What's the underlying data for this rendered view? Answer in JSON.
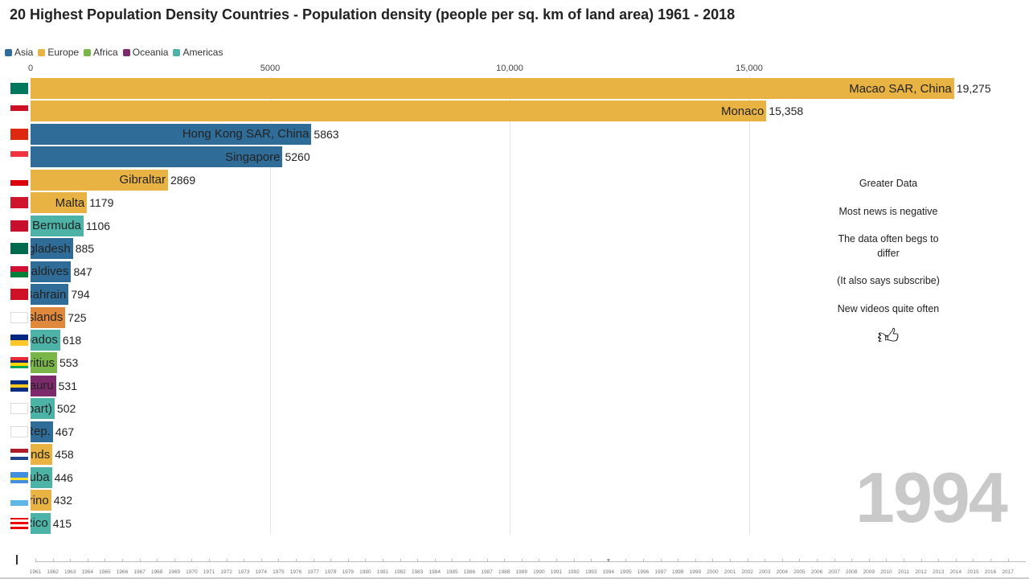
{
  "title": "20 Highest Population Density Countries - Population density (people per sq. km of land area) 1961 - 2018",
  "legend": [
    {
      "label": "Asia",
      "color": "#2f6d98"
    },
    {
      "label": "Europe",
      "color": "#e8b343"
    },
    {
      "label": "Africa",
      "color": "#79b548"
    },
    {
      "label": "Oceania",
      "color": "#7d2a6c"
    },
    {
      "label": "Americas",
      "color": "#4db3a7"
    }
  ],
  "chart_data": {
    "type": "bar",
    "orientation": "horizontal",
    "title": "20 Highest Population Density Countries - Population density (people per sq. km of land area) 1961 - 2018",
    "xlim": [
      0,
      19275
    ],
    "xticks": [
      {
        "v": 0,
        "label": "0"
      },
      {
        "v": 5000,
        "label": "5000"
      },
      {
        "v": 10000,
        "label": "10,000"
      },
      {
        "v": 15000,
        "label": "15,000"
      }
    ],
    "grid": true,
    "legend_position": "top-left",
    "year": "1994",
    "bars": [
      {
        "name": "Macao SAR, China",
        "value": 19275,
        "display": "19,275",
        "color": "#e8b343",
        "flag": [
          "#00785e",
          "#00785e"
        ]
      },
      {
        "name": "Monaco",
        "value": 15358,
        "display": "15,358",
        "color": "#e8b343",
        "flag": [
          "#ce1126",
          "#ffffff"
        ]
      },
      {
        "name": "Hong Kong SAR, China",
        "value": 5863,
        "display": "5863",
        "color": "#2f6d98",
        "flag": [
          "#de2910",
          "#de2910"
        ]
      },
      {
        "name": "Singapore",
        "value": 5260,
        "display": "5260",
        "color": "#2f6d98",
        "flag": [
          "#ef3340",
          "#ffffff"
        ]
      },
      {
        "name": "Gibraltar",
        "value": 2869,
        "display": "2869",
        "color": "#e8b343",
        "flag": [
          "#ffffff",
          "#da000c"
        ]
      },
      {
        "name": "Malta",
        "value": 1179,
        "display": "1179",
        "color": "#e8b343",
        "flag": [
          "#cf142b",
          "#cf142b"
        ]
      },
      {
        "name": "Bermuda",
        "value": 1106,
        "display": "1106",
        "color": "#4db3a7",
        "flag": [
          "#c8102e",
          "#c8102e"
        ]
      },
      {
        "name": "Bangladesh",
        "value": 885,
        "display": "885",
        "color": "#2f6d98",
        "flag": [
          "#006a4e",
          "#006a4e"
        ]
      },
      {
        "name": "Maldives",
        "value": 847,
        "display": "847",
        "color": "#2f6d98",
        "flag": [
          "#d21034",
          "#007e3a"
        ]
      },
      {
        "name": "Bahrain",
        "value": 794,
        "display": "794",
        "color": "#2f6d98",
        "flag": [
          "#ce1126",
          "#ce1126"
        ]
      },
      {
        "name": "Channel Islands",
        "value": 725,
        "display": "725",
        "color": "#e0883c",
        "flag": [
          "#ffffff",
          "#ffffff"
        ]
      },
      {
        "name": "Barbados",
        "value": 618,
        "display": "618",
        "color": "#4db3a7",
        "flag": [
          "#00267f",
          "#ffc726"
        ]
      },
      {
        "name": "Mauritius",
        "value": 553,
        "display": "553",
        "color": "#79b548",
        "flag": [
          "#ea2839",
          "#1a206d",
          "#ffd500",
          "#00a551"
        ]
      },
      {
        "name": "Nauru",
        "value": 531,
        "display": "531",
        "color": "#7d2a6c",
        "flag": [
          "#002b7f",
          "#ffc61e",
          "#002b7f"
        ]
      },
      {
        "name": "Sint Maarten (Dutch part)",
        "value": 502,
        "display": "502",
        "color": "#4db3a7",
        "flag": [
          "#ffffff",
          "#ffffff"
        ]
      },
      {
        "name": "Korea, Rep.",
        "value": 467,
        "display": "467",
        "color": "#2f6d98",
        "flag": [
          "#ffffff",
          "#ffffff"
        ]
      },
      {
        "name": "Netherlands",
        "value": 458,
        "display": "458",
        "color": "#e8b343",
        "flag": [
          "#ae1c28",
          "#ffffff",
          "#21468b"
        ]
      },
      {
        "name": "Aruba",
        "value": 446,
        "display": "446",
        "color": "#4db3a7",
        "flag": [
          "#418fde",
          "#418fde",
          "#fbe122",
          "#418fde"
        ]
      },
      {
        "name": "San Marino",
        "value": 432,
        "display": "432",
        "color": "#e8b343",
        "flag": [
          "#ffffff",
          "#5eb6e4"
        ]
      },
      {
        "name": "Puerto Rico",
        "value": 415,
        "display": "415",
        "color": "#4db3a7",
        "flag": [
          "#ed0000",
          "#ffffff",
          "#ed0000",
          "#ffffff",
          "#ed0000"
        ]
      }
    ]
  },
  "side_text": [
    "Greater Data",
    "Most news is negative",
    "The data often begs to differ",
    "(It also says subscribe)",
    "New videos quite often"
  ],
  "timeline": {
    "years": [
      "1961",
      "1962",
      "1963",
      "1964",
      "1965",
      "1966",
      "1967",
      "1968",
      "1969",
      "1970",
      "1971",
      "1972",
      "1973",
      "1974",
      "1975",
      "1976",
      "1977",
      "1978",
      "1979",
      "1980",
      "1981",
      "1982",
      "1983",
      "1984",
      "1985",
      "1986",
      "1987",
      "1988",
      "1989",
      "1990",
      "1991",
      "1992",
      "1993",
      "1994",
      "1995",
      "1996",
      "1997",
      "1998",
      "1999",
      "2000",
      "2001",
      "2002",
      "2003",
      "2004",
      "2005",
      "2006",
      "2007",
      "2008",
      "2009",
      "2010",
      "2011",
      "2012",
      "2013",
      "2014",
      "2015",
      "2016",
      "2017"
    ],
    "current": "1994"
  }
}
